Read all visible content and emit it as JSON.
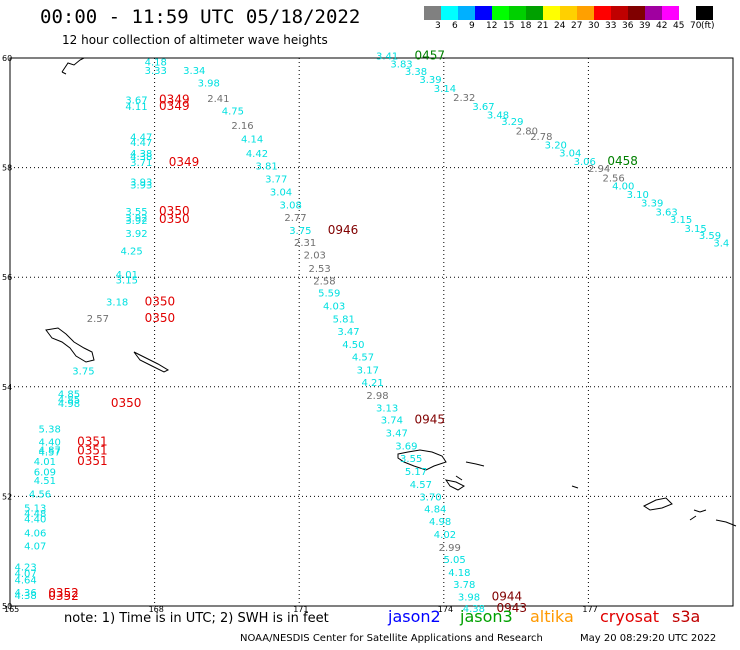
{
  "header": {
    "title": "00:00 - 11:59 UTC 05/18/2022",
    "subtitle": "12 hour collection of altimeter wave heights"
  },
  "legend": {
    "colors": [
      "#808080",
      "#00ffff",
      "#00b0ff",
      "#0000ff",
      "#00ff00",
      "#00d000",
      "#00a000",
      "#ffff00",
      "#ffd000",
      "#ffa000",
      "#ff0000",
      "#c00000",
      "#800000",
      "#a000a0",
      "#ff00ff",
      "#ffffff",
      "#000000"
    ],
    "labels": [
      "3",
      "6",
      "9",
      "12",
      "15",
      "18",
      "21",
      "24",
      "27",
      "30",
      "33",
      "36",
      "39",
      "42",
      "45",
      "70",
      "(ft)"
    ]
  },
  "axes": {
    "lat_labels": [
      "60",
      "58",
      "56",
      "54",
      "52",
      "50"
    ],
    "lon_labels": [
      "165",
      "168",
      "171",
      "174",
      "177"
    ]
  },
  "colors": {
    "cyan": "#00e0e0",
    "gray": "#707070",
    "red": "#e00000",
    "darkred": "#800000",
    "green": "#008000"
  },
  "observations": [
    {
      "text": "4.18",
      "lon": 168.0,
      "lat": 59.94,
      "c": "cyan"
    },
    {
      "text": "3.33",
      "lon": 168.0,
      "lat": 59.78,
      "c": "cyan"
    },
    {
      "text": "3.34",
      "lon": 168.8,
      "lat": 59.78,
      "c": "cyan"
    },
    {
      "text": "3.98",
      "lon": 169.1,
      "lat": 59.55,
      "c": "cyan"
    },
    {
      "text": "3.67",
      "lon": 167.6,
      "lat": 59.24,
      "c": "cyan"
    },
    {
      "text": "4.11",
      "lon": 167.6,
      "lat": 59.12,
      "c": "cyan"
    },
    {
      "text": "0349",
      "lon": 168.3,
      "lat": 59.24,
      "c": "red",
      "t": 1
    },
    {
      "text": "0349",
      "lon": 168.3,
      "lat": 59.12,
      "c": "red",
      "t": 1
    },
    {
      "text": "2.41",
      "lon": 169.3,
      "lat": 59.27,
      "c": "gray"
    },
    {
      "text": "4.75",
      "lon": 169.6,
      "lat": 59.04,
      "c": "cyan"
    },
    {
      "text": "2.16",
      "lon": 169.8,
      "lat": 58.78,
      "c": "gray"
    },
    {
      "text": "4.47",
      "lon": 167.7,
      "lat": 58.57,
      "c": "cyan"
    },
    {
      "text": "4.47",
      "lon": 167.7,
      "lat": 58.47,
      "c": "cyan"
    },
    {
      "text": "4.14",
      "lon": 170.0,
      "lat": 58.53,
      "c": "cyan"
    },
    {
      "text": "4.38",
      "lon": 167.7,
      "lat": 58.27,
      "c": "cyan"
    },
    {
      "text": "4.38",
      "lon": 167.7,
      "lat": 58.21,
      "c": "cyan"
    },
    {
      "text": "3.71",
      "lon": 167.7,
      "lat": 58.1,
      "c": "cyan"
    },
    {
      "text": "4.42",
      "lon": 170.1,
      "lat": 58.27,
      "c": "cyan"
    },
    {
      "text": "0349",
      "lon": 168.5,
      "lat": 58.1,
      "c": "red",
      "t": 1
    },
    {
      "text": "3.81",
      "lon": 170.3,
      "lat": 58.04,
      "c": "cyan"
    },
    {
      "text": "3.77",
      "lon": 170.5,
      "lat": 57.8,
      "c": "cyan"
    },
    {
      "text": "3.93",
      "lon": 167.7,
      "lat": 57.75,
      "c": "cyan"
    },
    {
      "text": "3.93",
      "lon": 167.7,
      "lat": 57.69,
      "c": "cyan"
    },
    {
      "text": "3.04",
      "lon": 170.6,
      "lat": 57.56,
      "c": "cyan"
    },
    {
      "text": "3.08",
      "lon": 170.8,
      "lat": 57.33,
      "c": "cyan"
    },
    {
      "text": "3.55",
      "lon": 167.6,
      "lat": 57.21,
      "c": "cyan"
    },
    {
      "text": "3.92",
      "lon": 167.6,
      "lat": 57.09,
      "c": "cyan"
    },
    {
      "text": "3.92",
      "lon": 167.6,
      "lat": 57.04,
      "c": "cyan"
    },
    {
      "text": "0350",
      "lon": 168.3,
      "lat": 57.21,
      "c": "red",
      "t": 1
    },
    {
      "text": "0350",
      "lon": 168.3,
      "lat": 57.06,
      "c": "red",
      "t": 1
    },
    {
      "text": "2.77",
      "lon": 170.9,
      "lat": 57.1,
      "c": "gray"
    },
    {
      "text": "3.75",
      "lon": 171.0,
      "lat": 56.86,
      "c": "cyan"
    },
    {
      "text": "0946",
      "lon": 171.8,
      "lat": 56.86,
      "c": "darkred",
      "t": 1
    },
    {
      "text": "3.92",
      "lon": 167.6,
      "lat": 56.81,
      "c": "cyan"
    },
    {
      "text": "2.31",
      "lon": 171.1,
      "lat": 56.64,
      "c": "gray"
    },
    {
      "text": "4.25",
      "lon": 167.5,
      "lat": 56.49,
      "c": "cyan"
    },
    {
      "text": "2.03",
      "lon": 171.3,
      "lat": 56.41,
      "c": "gray"
    },
    {
      "text": "2.53",
      "lon": 171.4,
      "lat": 56.17,
      "c": "gray"
    },
    {
      "text": "4.01",
      "lon": 167.4,
      "lat": 56.06,
      "c": "cyan"
    },
    {
      "text": "3.15",
      "lon": 167.4,
      "lat": 55.96,
      "c": "cyan"
    },
    {
      "text": "2.58",
      "lon": 171.5,
      "lat": 55.94,
      "c": "gray"
    },
    {
      "text": "5.59",
      "lon": 171.6,
      "lat": 55.72,
      "c": "cyan"
    },
    {
      "text": "3.18",
      "lon": 167.2,
      "lat": 55.56,
      "c": "cyan"
    },
    {
      "text": "0350",
      "lon": 168.0,
      "lat": 55.56,
      "c": "red",
      "t": 1
    },
    {
      "text": "4.03",
      "lon": 171.7,
      "lat": 55.48,
      "c": "cyan"
    },
    {
      "text": "2.57",
      "lon": 166.8,
      "lat": 55.26,
      "c": "gray"
    },
    {
      "text": "0350",
      "lon": 168.0,
      "lat": 55.26,
      "c": "red",
      "t": 1
    },
    {
      "text": "5.81",
      "lon": 171.9,
      "lat": 55.25,
      "c": "cyan"
    },
    {
      "text": "3.47",
      "lon": 172.0,
      "lat": 55.02,
      "c": "cyan"
    },
    {
      "text": "4.50",
      "lon": 172.1,
      "lat": 54.78,
      "c": "cyan"
    },
    {
      "text": "4.57",
      "lon": 172.3,
      "lat": 54.55,
      "c": "cyan"
    },
    {
      "text": "3.75",
      "lon": 166.5,
      "lat": 54.3,
      "c": "cyan"
    },
    {
      "text": "3.17",
      "lon": 172.4,
      "lat": 54.32,
      "c": "cyan"
    },
    {
      "text": "4.21",
      "lon": 172.5,
      "lat": 54.09,
      "c": "cyan"
    },
    {
      "text": "4.85",
      "lon": 166.2,
      "lat": 53.88,
      "c": "cyan"
    },
    {
      "text": "4.85",
      "lon": 166.2,
      "lat": 53.78,
      "c": "cyan"
    },
    {
      "text": "4.98",
      "lon": 166.2,
      "lat": 53.7,
      "c": "cyan"
    },
    {
      "text": "0350",
      "lon": 167.3,
      "lat": 53.7,
      "c": "red",
      "t": 1
    },
    {
      "text": "2.98",
      "lon": 172.6,
      "lat": 53.85,
      "c": "gray"
    },
    {
      "text": "3.13",
      "lon": 172.8,
      "lat": 53.62,
      "c": "cyan"
    },
    {
      "text": "3.74",
      "lon": 172.9,
      "lat": 53.4,
      "c": "cyan"
    },
    {
      "text": "0945",
      "lon": 173.6,
      "lat": 53.4,
      "c": "darkred",
      "t": 1
    },
    {
      "text": "5.38",
      "lon": 165.8,
      "lat": 53.24,
      "c": "cyan"
    },
    {
      "text": "3.47",
      "lon": 173.0,
      "lat": 53.17,
      "c": "cyan"
    },
    {
      "text": "4.40",
      "lon": 165.8,
      "lat": 53.0,
      "c": "cyan"
    },
    {
      "text": "0351",
      "lon": 166.6,
      "lat": 53.0,
      "c": "red",
      "t": 1
    },
    {
      "text": "3.69",
      "lon": 173.2,
      "lat": 52.93,
      "c": "cyan"
    },
    {
      "text": "4.87",
      "lon": 165.8,
      "lat": 52.86,
      "c": "cyan"
    },
    {
      "text": "4.57",
      "lon": 165.8,
      "lat": 52.82,
      "c": "cyan"
    },
    {
      "text": "0351",
      "lon": 166.6,
      "lat": 52.84,
      "c": "red",
      "t": 1
    },
    {
      "text": "4.01",
      "lon": 165.7,
      "lat": 52.65,
      "c": "cyan"
    },
    {
      "text": "0351",
      "lon": 166.6,
      "lat": 52.65,
      "c": "red",
      "t": 1
    },
    {
      "text": "3.55",
      "lon": 173.3,
      "lat": 52.7,
      "c": "cyan"
    },
    {
      "text": "5.17",
      "lon": 173.4,
      "lat": 52.46,
      "c": "cyan"
    },
    {
      "text": "6.09",
      "lon": 165.7,
      "lat": 52.45,
      "c": "cyan"
    },
    {
      "text": "4.51",
      "lon": 165.7,
      "lat": 52.3,
      "c": "cyan"
    },
    {
      "text": "4.57",
      "lon": 173.5,
      "lat": 52.23,
      "c": "cyan"
    },
    {
      "text": "4.56",
      "lon": 165.6,
      "lat": 52.05,
      "c": "cyan"
    },
    {
      "text": "3.70",
      "lon": 173.7,
      "lat": 52.0,
      "c": "cyan"
    },
    {
      "text": "5.13",
      "lon": 165.5,
      "lat": 51.8,
      "c": "cyan"
    },
    {
      "text": "4.48",
      "lon": 165.5,
      "lat": 51.7,
      "c": "cyan"
    },
    {
      "text": "4.84",
      "lon": 173.8,
      "lat": 51.78,
      "c": "cyan"
    },
    {
      "text": "4.40",
      "lon": 165.5,
      "lat": 51.6,
      "c": "cyan"
    },
    {
      "text": "4.98",
      "lon": 173.9,
      "lat": 51.55,
      "c": "cyan"
    },
    {
      "text": "4.06",
      "lon": 165.5,
      "lat": 51.34,
      "c": "cyan"
    },
    {
      "text": "4.02",
      "lon": 174.0,
      "lat": 51.31,
      "c": "cyan"
    },
    {
      "text": "4.07",
      "lon": 165.5,
      "lat": 51.1,
      "c": "cyan"
    },
    {
      "text": "2.99",
      "lon": 174.1,
      "lat": 51.08,
      "c": "gray"
    },
    {
      "text": "5.05",
      "lon": 174.2,
      "lat": 50.86,
      "c": "cyan"
    },
    {
      "text": "4.23",
      "lon": 165.3,
      "lat": 50.72,
      "c": "cyan"
    },
    {
      "text": "4.18",
      "lon": 174.3,
      "lat": 50.62,
      "c": "cyan"
    },
    {
      "text": "4.07",
      "lon": 165.3,
      "lat": 50.6,
      "c": "cyan"
    },
    {
      "text": "3.78",
      "lon": 174.4,
      "lat": 50.4,
      "c": "cyan"
    },
    {
      "text": "4.64",
      "lon": 165.3,
      "lat": 50.48,
      "c": "cyan"
    },
    {
      "text": "3.98",
      "lon": 174.5,
      "lat": 50.17,
      "c": "cyan"
    },
    {
      "text": "0944",
      "lon": 175.2,
      "lat": 50.17,
      "c": "darkred",
      "t": 1
    },
    {
      "text": "4.36",
      "lon": 165.3,
      "lat": 50.26,
      "c": "cyan"
    },
    {
      "text": "4.38",
      "lon": 165.3,
      "lat": 50.2,
      "c": "cyan"
    },
    {
      "text": "0352",
      "lon": 166.0,
      "lat": 50.24,
      "c": "red",
      "t": 1
    },
    {
      "text": "0352",
      "lon": 166.0,
      "lat": 50.18,
      "c": "red",
      "t": 1
    },
    {
      "text": "4.38",
      "lon": 174.6,
      "lat": 49.96,
      "c": "cyan"
    },
    {
      "text": "0943",
      "lon": 175.3,
      "lat": 49.96,
      "c": "darkred",
      "t": 1
    },
    {
      "text": "3.41",
      "lon": 172.8,
      "lat": 60.05,
      "c": "cyan"
    },
    {
      "text": "0457",
      "lon": 173.6,
      "lat": 60.05,
      "c": "green",
      "t": 1
    },
    {
      "text": "3.83",
      "lon": 173.1,
      "lat": 59.9,
      "c": "cyan"
    },
    {
      "text": "3.38",
      "lon": 173.4,
      "lat": 59.76,
      "c": "cyan"
    },
    {
      "text": "3.39",
      "lon": 173.7,
      "lat": 59.62,
      "c": "cyan"
    },
    {
      "text": "3.14",
      "lon": 174.0,
      "lat": 59.45,
      "c": "cyan"
    },
    {
      "text": "2.32",
      "lon": 174.4,
      "lat": 59.29,
      "c": "gray"
    },
    {
      "text": "3.67",
      "lon": 174.8,
      "lat": 59.12,
      "c": "cyan"
    },
    {
      "text": "3.48",
      "lon": 175.1,
      "lat": 58.97,
      "c": "cyan"
    },
    {
      "text": "3.29",
      "lon": 175.4,
      "lat": 58.85,
      "c": "cyan"
    },
    {
      "text": "2.80",
      "lon": 175.7,
      "lat": 58.68,
      "c": "gray"
    },
    {
      "text": "2.78",
      "lon": 176.0,
      "lat": 58.58,
      "c": "gray"
    },
    {
      "text": "3.20",
      "lon": 176.3,
      "lat": 58.42,
      "c": "cyan"
    },
    {
      "text": "3.04",
      "lon": 176.6,
      "lat": 58.28,
      "c": "cyan"
    },
    {
      "text": "3.06",
      "lon": 176.9,
      "lat": 58.12,
      "c": "cyan"
    },
    {
      "text": "0458",
      "lon": 177.6,
      "lat": 58.12,
      "c": "green",
      "t": 1
    },
    {
      "text": "2.94",
      "lon": 177.2,
      "lat": 57.99,
      "c": "gray"
    },
    {
      "text": "2.56",
      "lon": 177.5,
      "lat": 57.82,
      "c": "gray"
    },
    {
      "text": "4.00",
      "lon": 177.7,
      "lat": 57.67,
      "c": "cyan"
    },
    {
      "text": "3.10",
      "lon": 178.0,
      "lat": 57.52,
      "c": "cyan"
    },
    {
      "text": "3.39",
      "lon": 178.3,
      "lat": 57.36,
      "c": "cyan"
    },
    {
      "text": "3.63",
      "lon": 178.6,
      "lat": 57.2,
      "c": "cyan"
    },
    {
      "text": "3.15",
      "lon": 178.9,
      "lat": 57.06,
      "c": "cyan"
    },
    {
      "text": "3.15",
      "lon": 179.2,
      "lat": 56.9,
      "c": "cyan"
    },
    {
      "text": "3.59",
      "lon": 179.5,
      "lat": 56.77,
      "c": "cyan"
    },
    {
      "text": "3.4",
      "lon": 179.8,
      "lat": 56.63,
      "c": "cyan"
    }
  ],
  "footer": {
    "note": "note:  1) Time is in UTC;  2) SWH is in feet",
    "satellites": [
      {
        "name": "jason2",
        "color": "#0000ff"
      },
      {
        "name": "jason3",
        "color": "#00a000"
      },
      {
        "name": "altika",
        "color": "#ff9900"
      },
      {
        "name": "cryosat",
        "color": "#e00000"
      },
      {
        "name": "s3a",
        "color": "#c00000"
      }
    ],
    "credit": "NOAA/NESDIS Center for Satellite Applications and Research",
    "date": "May 20 08:29:20 UTC 2022"
  }
}
